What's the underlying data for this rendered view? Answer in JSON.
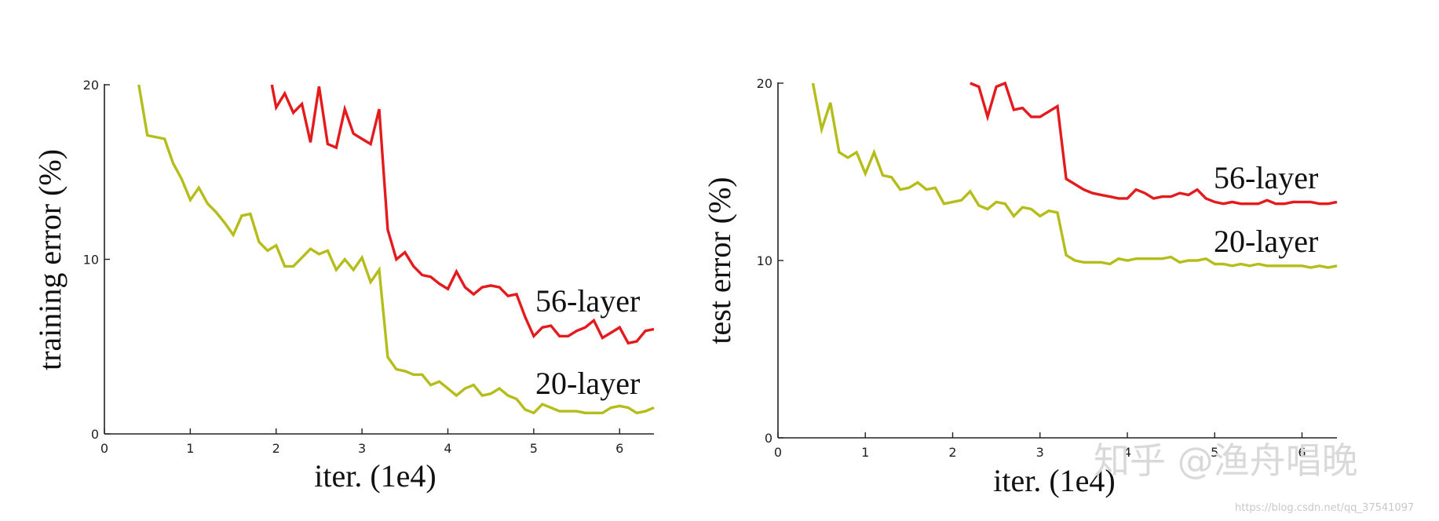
{
  "chart_data": [
    {
      "type": "line",
      "xlabel": "iter. (1e4)",
      "ylabel": "training error (%)",
      "xlim": [
        0,
        6.4
      ],
      "ylim": [
        0,
        20
      ],
      "xticks": [
        0,
        1,
        2,
        3,
        4,
        5,
        6
      ],
      "yticks": [
        0,
        10,
        20
      ],
      "grid": false,
      "legend": "inline labels at right",
      "series": [
        {
          "name": "56-layer",
          "color": "#e41a1c",
          "x": [
            1.95,
            2.0,
            2.1,
            2.2,
            2.3,
            2.4,
            2.5,
            2.6,
            2.7,
            2.8,
            2.9,
            3.0,
            3.1,
            3.2,
            3.3,
            3.4,
            3.5,
            3.6,
            3.7,
            3.8,
            3.9,
            4.0,
            4.1,
            4.2,
            4.3,
            4.4,
            4.5,
            4.6,
            4.7,
            4.8,
            4.9,
            5.0,
            5.1,
            5.2,
            5.3,
            5.4,
            5.5,
            5.6,
            5.7,
            5.8,
            5.9,
            6.0,
            6.1,
            6.2,
            6.3,
            6.4
          ],
          "y": [
            20,
            18.7,
            19.5,
            18.4,
            18.9,
            16.7,
            19.9,
            16.6,
            16.4,
            18.6,
            17.2,
            16.9,
            16.6,
            18.6,
            11.7,
            10.0,
            10.4,
            9.6,
            9.1,
            9.0,
            8.6,
            8.3,
            9.3,
            8.4,
            8.0,
            8.4,
            8.5,
            8.4,
            7.9,
            8.0,
            6.7,
            5.6,
            6.1,
            6.2,
            5.6,
            5.6,
            5.9,
            6.1,
            6.5,
            5.5,
            5.8,
            6.1,
            5.2,
            5.3,
            5.9,
            6.0
          ]
        },
        {
          "name": "20-layer",
          "color": "#b5bd1a",
          "x": [
            0.4,
            0.5,
            0.7,
            0.8,
            0.9,
            1.0,
            1.1,
            1.2,
            1.3,
            1.4,
            1.5,
            1.6,
            1.7,
            1.8,
            1.9,
            2.0,
            2.1,
            2.2,
            2.3,
            2.4,
            2.5,
            2.6,
            2.7,
            2.8,
            2.9,
            3.0,
            3.1,
            3.2,
            3.3,
            3.4,
            3.5,
            3.6,
            3.7,
            3.8,
            3.9,
            4.0,
            4.1,
            4.2,
            4.3,
            4.4,
            4.5,
            4.6,
            4.7,
            4.8,
            4.9,
            5.0,
            5.1,
            5.2,
            5.3,
            5.4,
            5.5,
            5.6,
            5.7,
            5.8,
            5.9,
            6.0,
            6.1,
            6.2,
            6.3,
            6.4
          ],
          "y": [
            20,
            17.1,
            16.9,
            15.5,
            14.6,
            13.4,
            14.1,
            13.2,
            12.7,
            12.1,
            11.4,
            12.5,
            12.6,
            11.0,
            10.5,
            10.8,
            9.6,
            9.6,
            10.1,
            10.6,
            10.3,
            10.5,
            9.4,
            10.0,
            9.4,
            10.1,
            8.7,
            9.4,
            4.4,
            3.7,
            3.6,
            3.4,
            3.4,
            2.8,
            3.0,
            2.6,
            2.2,
            2.6,
            2.8,
            2.2,
            2.3,
            2.6,
            2.2,
            2.0,
            1.4,
            1.2,
            1.7,
            1.5,
            1.3,
            1.3,
            1.3,
            1.2,
            1.2,
            1.2,
            1.5,
            1.6,
            1.5,
            1.2,
            1.3,
            1.5
          ]
        }
      ]
    },
    {
      "type": "line",
      "xlabel": "iter. (1e4)",
      "ylabel": "test error (%)",
      "xlim": [
        0,
        6.4
      ],
      "ylim": [
        0,
        20
      ],
      "xticks": [
        0,
        1,
        2,
        3,
        4,
        5,
        6
      ],
      "yticks": [
        0,
        10,
        20
      ],
      "grid": false,
      "legend": "inline labels at right",
      "series": [
        {
          "name": "56-layer",
          "color": "#e41a1c",
          "x": [
            2.2,
            2.3,
            2.4,
            2.5,
            2.6,
            2.7,
            2.8,
            2.9,
            3.0,
            3.1,
            3.2,
            3.3,
            3.4,
            3.5,
            3.6,
            3.7,
            3.8,
            3.9,
            4.0,
            4.1,
            4.2,
            4.3,
            4.4,
            4.5,
            4.6,
            4.7,
            4.8,
            4.9,
            5.0,
            5.1,
            5.2,
            5.3,
            5.4,
            5.5,
            5.6,
            5.7,
            5.8,
            5.9,
            6.0,
            6.1,
            6.2,
            6.3,
            6.4
          ],
          "y": [
            20,
            19.8,
            18.1,
            19.8,
            20.0,
            18.5,
            18.6,
            18.1,
            18.1,
            18.4,
            18.7,
            14.6,
            14.3,
            14.0,
            13.8,
            13.7,
            13.6,
            13.5,
            13.5,
            14.0,
            13.8,
            13.5,
            13.6,
            13.6,
            13.8,
            13.7,
            14.0,
            13.5,
            13.3,
            13.2,
            13.3,
            13.2,
            13.2,
            13.2,
            13.4,
            13.2,
            13.2,
            13.3,
            13.3,
            13.3,
            13.2,
            13.2,
            13.3
          ]
        },
        {
          "name": "20-layer",
          "color": "#b5bd1a",
          "x": [
            0.4,
            0.5,
            0.6,
            0.7,
            0.8,
            0.9,
            1.0,
            1.1,
            1.2,
            1.3,
            1.4,
            1.5,
            1.6,
            1.7,
            1.8,
            1.9,
            2.0,
            2.1,
            2.2,
            2.3,
            2.4,
            2.5,
            2.6,
            2.7,
            2.8,
            2.9,
            3.0,
            3.1,
            3.2,
            3.3,
            3.4,
            3.5,
            3.6,
            3.7,
            3.8,
            3.9,
            4.0,
            4.1,
            4.2,
            4.3,
            4.4,
            4.5,
            4.6,
            4.7,
            4.8,
            4.9,
            5.0,
            5.1,
            5.2,
            5.3,
            5.4,
            5.5,
            5.6,
            5.7,
            5.8,
            5.9,
            6.0,
            6.1,
            6.2,
            6.3,
            6.4
          ],
          "y": [
            20,
            17.4,
            18.9,
            16.1,
            15.8,
            16.1,
            14.9,
            16.1,
            14.8,
            14.7,
            14.0,
            14.1,
            14.4,
            14.0,
            14.1,
            13.2,
            13.3,
            13.4,
            13.9,
            13.1,
            12.9,
            13.3,
            13.2,
            12.5,
            13.0,
            12.9,
            12.5,
            12.8,
            12.7,
            10.3,
            10.0,
            9.9,
            9.9,
            9.9,
            9.8,
            10.1,
            10.0,
            10.1,
            10.1,
            10.1,
            10.1,
            10.2,
            9.9,
            10.0,
            10.0,
            10.1,
            9.8,
            9.8,
            9.7,
            9.8,
            9.7,
            9.8,
            9.7,
            9.7,
            9.7,
            9.7,
            9.7,
            9.6,
            9.7,
            9.6,
            9.7
          ]
        }
      ]
    }
  ],
  "watermark": {
    "main": "知乎 @渔舟唱晚",
    "url": "https://blog.csdn.net/qq_37541097"
  }
}
